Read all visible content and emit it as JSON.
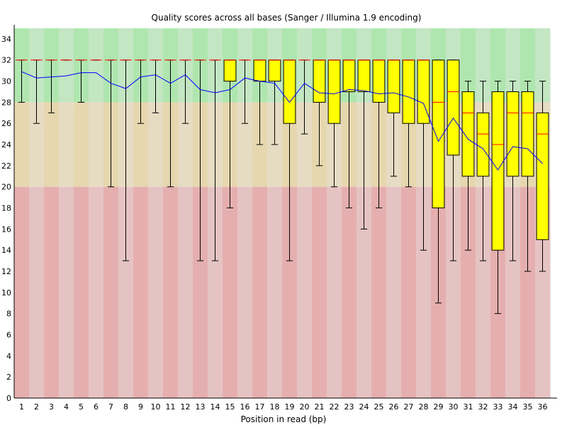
{
  "chart_data": {
    "type": "box",
    "title": "Quality scores across all bases (Sanger / Illumina 1.9 encoding)",
    "xlabel": "Position in read (bp)",
    "ylabel": "",
    "ylim": [
      0,
      35
    ],
    "yticks": [
      0,
      2,
      4,
      6,
      8,
      10,
      12,
      14,
      16,
      18,
      20,
      22,
      24,
      26,
      28,
      30,
      32,
      34
    ],
    "categories": [
      "1",
      "2",
      "3",
      "4",
      "5",
      "6",
      "7",
      "8",
      "9",
      "10",
      "11",
      "12",
      "13",
      "14",
      "15",
      "16",
      "17",
      "18",
      "19",
      "20",
      "21",
      "22",
      "23",
      "24",
      "25",
      "26",
      "27",
      "28",
      "29",
      "30",
      "31",
      "32",
      "33",
      "34",
      "35",
      "36"
    ],
    "quality_bands": [
      {
        "from": 28,
        "to": 35,
        "color_a": "#afe6af",
        "color_b": "#c3e6c3"
      },
      {
        "from": 20,
        "to": 28,
        "color_a": "#e6d7af",
        "color_b": "#e6dcc3"
      },
      {
        "from": 0,
        "to": 20,
        "color_a": "#e6afaf",
        "color_b": "#e6c3c3"
      }
    ],
    "colors": {
      "box_fill": "#ffff00",
      "box_stroke": "#000000",
      "median": "#ff0000",
      "mean_line": "#0000ff",
      "whisker": "#000000"
    },
    "boxes": [
      {
        "pos": "1",
        "lower": 28,
        "q1": 32,
        "median": 32,
        "q3": 32,
        "upper": 32
      },
      {
        "pos": "2",
        "lower": 26,
        "q1": 32,
        "median": 32,
        "q3": 32,
        "upper": 32
      },
      {
        "pos": "3",
        "lower": 27,
        "q1": 32,
        "median": 32,
        "q3": 32,
        "upper": 32
      },
      {
        "pos": "4",
        "lower": 32,
        "q1": 32,
        "median": 32,
        "q3": 32,
        "upper": 32
      },
      {
        "pos": "5",
        "lower": 28,
        "q1": 32,
        "median": 32,
        "q3": 32,
        "upper": 32
      },
      {
        "pos": "6",
        "lower": 32,
        "q1": 32,
        "median": 32,
        "q3": 32,
        "upper": 32
      },
      {
        "pos": "7",
        "lower": 20,
        "q1": 32,
        "median": 32,
        "q3": 32,
        "upper": 32
      },
      {
        "pos": "8",
        "lower": 13,
        "q1": 32,
        "median": 32,
        "q3": 32,
        "upper": 32
      },
      {
        "pos": "9",
        "lower": 26,
        "q1": 32,
        "median": 32,
        "q3": 32,
        "upper": 32
      },
      {
        "pos": "10",
        "lower": 27,
        "q1": 32,
        "median": 32,
        "q3": 32,
        "upper": 32
      },
      {
        "pos": "11",
        "lower": 20,
        "q1": 32,
        "median": 32,
        "q3": 32,
        "upper": 32
      },
      {
        "pos": "12",
        "lower": 26,
        "q1": 32,
        "median": 32,
        "q3": 32,
        "upper": 32
      },
      {
        "pos": "13",
        "lower": 13,
        "q1": 32,
        "median": 32,
        "q3": 32,
        "upper": 32
      },
      {
        "pos": "14",
        "lower": 13,
        "q1": 32,
        "median": 32,
        "q3": 32,
        "upper": 32
      },
      {
        "pos": "15",
        "lower": 18,
        "q1": 30,
        "median": 32,
        "q3": 32,
        "upper": 32
      },
      {
        "pos": "16",
        "lower": 26,
        "q1": 32,
        "median": 32,
        "q3": 32,
        "upper": 32
      },
      {
        "pos": "17",
        "lower": 24,
        "q1": 30,
        "median": 32,
        "q3": 32,
        "upper": 32
      },
      {
        "pos": "18",
        "lower": 24,
        "q1": 30,
        "median": 32,
        "q3": 32,
        "upper": 32
      },
      {
        "pos": "19",
        "lower": 13,
        "q1": 26,
        "median": 32,
        "q3": 32,
        "upper": 32
      },
      {
        "pos": "20",
        "lower": 25,
        "q1": 32,
        "median": 32,
        "q3": 32,
        "upper": 32
      },
      {
        "pos": "21",
        "lower": 22,
        "q1": 28,
        "median": 32,
        "q3": 32,
        "upper": 32
      },
      {
        "pos": "22",
        "lower": 20,
        "q1": 26,
        "median": 32,
        "q3": 32,
        "upper": 32
      },
      {
        "pos": "23",
        "lower": 18,
        "q1": 29,
        "median": 32,
        "q3": 32,
        "upper": 32
      },
      {
        "pos": "24",
        "lower": 16,
        "q1": 29,
        "median": 32,
        "q3": 32,
        "upper": 32
      },
      {
        "pos": "25",
        "lower": 18,
        "q1": 28,
        "median": 32,
        "q3": 32,
        "upper": 32
      },
      {
        "pos": "26",
        "lower": 21,
        "q1": 27,
        "median": 32,
        "q3": 32,
        "upper": 32
      },
      {
        "pos": "27",
        "lower": 20,
        "q1": 26,
        "median": 32,
        "q3": 32,
        "upper": 32
      },
      {
        "pos": "28",
        "lower": 14,
        "q1": 26,
        "median": 32,
        "q3": 32,
        "upper": 32
      },
      {
        "pos": "29",
        "lower": 9,
        "q1": 18,
        "median": 28,
        "q3": 32,
        "upper": 32
      },
      {
        "pos": "30",
        "lower": 13,
        "q1": 23,
        "median": 29,
        "q3": 32,
        "upper": 32
      },
      {
        "pos": "31",
        "lower": 14,
        "q1": 21,
        "median": 27,
        "q3": 29,
        "upper": 30
      },
      {
        "pos": "32",
        "lower": 13,
        "q1": 21,
        "median": 25,
        "q3": 27,
        "upper": 30
      },
      {
        "pos": "33",
        "lower": 8,
        "q1": 14,
        "median": 24,
        "q3": 29,
        "upper": 30
      },
      {
        "pos": "34",
        "lower": 13,
        "q1": 21,
        "median": 27,
        "q3": 29,
        "upper": 30
      },
      {
        "pos": "35",
        "lower": 12,
        "q1": 21,
        "median": 27,
        "q3": 29,
        "upper": 30
      },
      {
        "pos": "36",
        "lower": 12,
        "q1": 15,
        "median": 25,
        "q3": 27,
        "upper": 30
      }
    ],
    "mean": [
      30.9,
      30.3,
      30.4,
      30.5,
      30.8,
      30.8,
      29.8,
      29.3,
      30.4,
      30.6,
      29.8,
      30.6,
      29.2,
      28.9,
      29.2,
      30.3,
      30.0,
      29.8,
      28.0,
      29.8,
      28.9,
      28.8,
      29.2,
      29.1,
      28.8,
      28.9,
      28.5,
      27.9,
      24.3,
      26.5,
      24.5,
      23.6,
      21.6,
      23.8,
      23.6,
      22.2
    ],
    "grid": false,
    "legend": "none"
  }
}
